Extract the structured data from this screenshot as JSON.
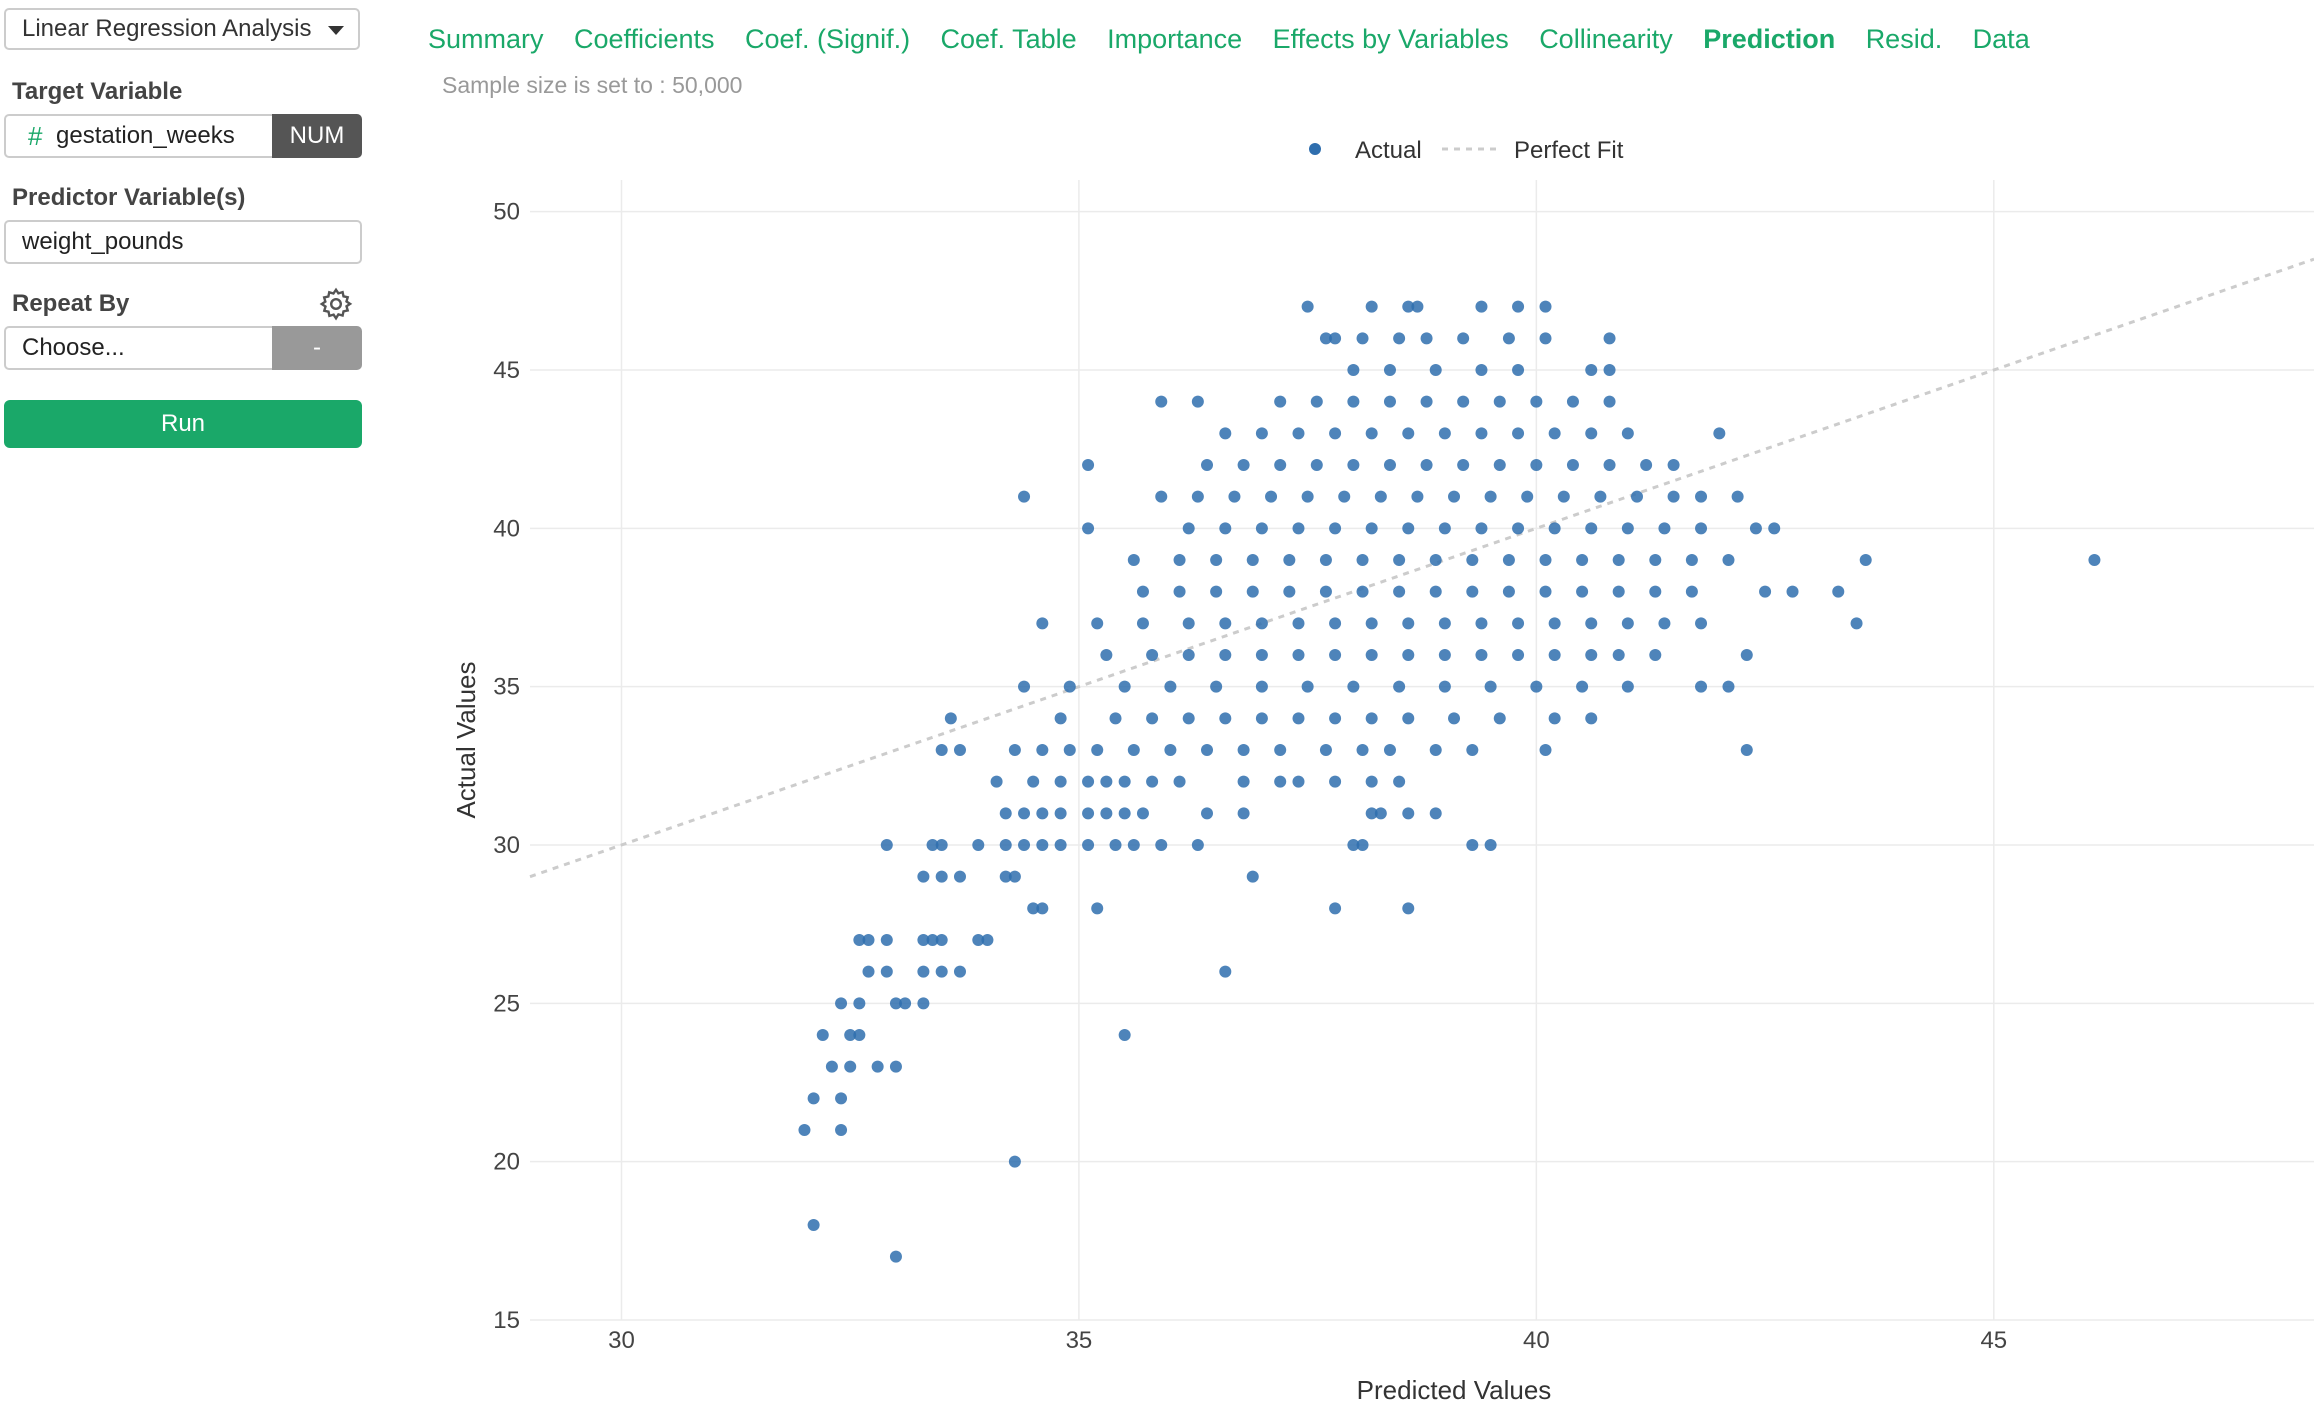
{
  "sidebar": {
    "analysis_type": "Linear Regression Analysis",
    "target_label": "Target Variable",
    "target_icon": "#",
    "target_value": "gestation_weeks",
    "target_type": "NUM",
    "predictor_label": "Predictor Variable(s)",
    "predictor_value": "weight_pounds",
    "repeat_label": "Repeat By",
    "repeat_value": "Choose...",
    "repeat_button": "-",
    "run_label": "Run",
    "gear_icon": "gear-icon",
    "accent_color": "#1aa869"
  },
  "tabs": [
    {
      "label": "Summary"
    },
    {
      "label": "Coefficients"
    },
    {
      "label": "Coef. (Signif.)"
    },
    {
      "label": "Coef. Table"
    },
    {
      "label": "Importance"
    },
    {
      "label": "Effects by Variables"
    },
    {
      "label": "Collinearity"
    },
    {
      "label": "Prediction",
      "active": true
    },
    {
      "label": "Resid."
    },
    {
      "label": "Data"
    }
  ],
  "sample_note": "Sample size is set to : 50,000",
  "chart_data": {
    "type": "scatter",
    "title": "",
    "xlabel": "Predicted Values",
    "ylabel": "Actual Values",
    "xlim": [
      29,
      48.5
    ],
    "ylim": [
      15,
      51
    ],
    "x_ticks": [
      30,
      35,
      40,
      45
    ],
    "y_ticks": [
      15,
      20,
      25,
      30,
      35,
      40,
      45,
      50
    ],
    "grid": true,
    "legend_position": "top-center",
    "point_color": "#2f6eae",
    "line_color": "#cccccc",
    "series": [
      {
        "name": "Actual",
        "points": [
          [
            32.1,
            18
          ],
          [
            33.0,
            17
          ],
          [
            34.3,
            20
          ],
          [
            32.0,
            21
          ],
          [
            32.4,
            21
          ],
          [
            32.1,
            22
          ],
          [
            32.4,
            22
          ],
          [
            32.3,
            23
          ],
          [
            32.5,
            23
          ],
          [
            32.8,
            23
          ],
          [
            33.0,
            23
          ],
          [
            32.2,
            24
          ],
          [
            32.5,
            24
          ],
          [
            32.6,
            24
          ],
          [
            35.5,
            24
          ],
          [
            32.4,
            25
          ],
          [
            32.6,
            25
          ],
          [
            33.0,
            25
          ],
          [
            33.1,
            25
          ],
          [
            33.3,
            25
          ],
          [
            36.6,
            26
          ],
          [
            32.7,
            26
          ],
          [
            32.9,
            26
          ],
          [
            33.3,
            26
          ],
          [
            33.5,
            26
          ],
          [
            33.7,
            26
          ],
          [
            32.6,
            27
          ],
          [
            32.7,
            27
          ],
          [
            32.9,
            27
          ],
          [
            33.3,
            27
          ],
          [
            33.4,
            27
          ],
          [
            33.5,
            27
          ],
          [
            33.9,
            27
          ],
          [
            34.0,
            27
          ],
          [
            34.5,
            28
          ],
          [
            34.6,
            28
          ],
          [
            35.2,
            28
          ],
          [
            37.8,
            28
          ],
          [
            38.6,
            28
          ],
          [
            33.3,
            29
          ],
          [
            33.5,
            29
          ],
          [
            33.7,
            29
          ],
          [
            34.2,
            29
          ],
          [
            34.3,
            29
          ],
          [
            36.9,
            29
          ],
          [
            32.9,
            30
          ],
          [
            33.4,
            30
          ],
          [
            33.5,
            30
          ],
          [
            33.9,
            30
          ],
          [
            34.2,
            30
          ],
          [
            34.4,
            30
          ],
          [
            34.6,
            30
          ],
          [
            34.8,
            30
          ],
          [
            35.1,
            30
          ],
          [
            35.4,
            30
          ],
          [
            35.6,
            30
          ],
          [
            35.9,
            30
          ],
          [
            36.3,
            30
          ],
          [
            38.0,
            30
          ],
          [
            38.1,
            30
          ],
          [
            39.3,
            30
          ],
          [
            39.5,
            30
          ],
          [
            34.2,
            31
          ],
          [
            34.4,
            31
          ],
          [
            34.6,
            31
          ],
          [
            34.8,
            31
          ],
          [
            35.1,
            31
          ],
          [
            35.3,
            31
          ],
          [
            35.5,
            31
          ],
          [
            35.7,
            31
          ],
          [
            36.4,
            31
          ],
          [
            36.8,
            31
          ],
          [
            38.2,
            31
          ],
          [
            38.3,
            31
          ],
          [
            38.6,
            31
          ],
          [
            38.9,
            31
          ],
          [
            34.1,
            32
          ],
          [
            34.5,
            32
          ],
          [
            34.8,
            32
          ],
          [
            35.1,
            32
          ],
          [
            35.3,
            32
          ],
          [
            35.5,
            32
          ],
          [
            35.8,
            32
          ],
          [
            36.1,
            32
          ],
          [
            36.8,
            32
          ],
          [
            37.2,
            32
          ],
          [
            37.4,
            32
          ],
          [
            37.8,
            32
          ],
          [
            38.2,
            32
          ],
          [
            38.5,
            32
          ],
          [
            33.5,
            33
          ],
          [
            33.7,
            33
          ],
          [
            34.3,
            33
          ],
          [
            34.6,
            33
          ],
          [
            34.9,
            33
          ],
          [
            35.2,
            33
          ],
          [
            35.6,
            33
          ],
          [
            36.0,
            33
          ],
          [
            36.4,
            33
          ],
          [
            36.8,
            33
          ],
          [
            37.2,
            33
          ],
          [
            37.7,
            33
          ],
          [
            38.1,
            33
          ],
          [
            38.4,
            33
          ],
          [
            38.9,
            33
          ],
          [
            39.3,
            33
          ],
          [
            40.1,
            33
          ],
          [
            42.3,
            33
          ],
          [
            33.6,
            34
          ],
          [
            34.8,
            34
          ],
          [
            35.4,
            34
          ],
          [
            35.8,
            34
          ],
          [
            36.2,
            34
          ],
          [
            36.6,
            34
          ],
          [
            37.0,
            34
          ],
          [
            37.4,
            34
          ],
          [
            37.8,
            34
          ],
          [
            38.2,
            34
          ],
          [
            38.6,
            34
          ],
          [
            39.1,
            34
          ],
          [
            39.6,
            34
          ],
          [
            40.2,
            34
          ],
          [
            40.6,
            34
          ],
          [
            34.4,
            35
          ],
          [
            34.9,
            35
          ],
          [
            35.5,
            35
          ],
          [
            36.0,
            35
          ],
          [
            36.5,
            35
          ],
          [
            37.0,
            35
          ],
          [
            37.5,
            35
          ],
          [
            38.0,
            35
          ],
          [
            38.5,
            35
          ],
          [
            39.0,
            35
          ],
          [
            39.5,
            35
          ],
          [
            40.0,
            35
          ],
          [
            40.5,
            35
          ],
          [
            41.0,
            35
          ],
          [
            41.8,
            35
          ],
          [
            42.1,
            35
          ],
          [
            35.3,
            36
          ],
          [
            35.8,
            36
          ],
          [
            36.2,
            36
          ],
          [
            36.6,
            36
          ],
          [
            37.0,
            36
          ],
          [
            37.4,
            36
          ],
          [
            37.8,
            36
          ],
          [
            38.2,
            36
          ],
          [
            38.6,
            36
          ],
          [
            39.0,
            36
          ],
          [
            39.4,
            36
          ],
          [
            39.8,
            36
          ],
          [
            40.2,
            36
          ],
          [
            40.6,
            36
          ],
          [
            40.9,
            36
          ],
          [
            41.3,
            36
          ],
          [
            42.3,
            36
          ],
          [
            34.6,
            37
          ],
          [
            35.2,
            37
          ],
          [
            35.7,
            37
          ],
          [
            36.2,
            37
          ],
          [
            36.6,
            37
          ],
          [
            37.0,
            37
          ],
          [
            37.4,
            37
          ],
          [
            37.8,
            37
          ],
          [
            38.2,
            37
          ],
          [
            38.6,
            37
          ],
          [
            39.0,
            37
          ],
          [
            39.4,
            37
          ],
          [
            39.8,
            37
          ],
          [
            40.2,
            37
          ],
          [
            40.6,
            37
          ],
          [
            41.0,
            37
          ],
          [
            41.4,
            37
          ],
          [
            41.8,
            37
          ],
          [
            43.5,
            37
          ],
          [
            35.7,
            38
          ],
          [
            36.1,
            38
          ],
          [
            36.5,
            38
          ],
          [
            36.9,
            38
          ],
          [
            37.3,
            38
          ],
          [
            37.7,
            38
          ],
          [
            38.1,
            38
          ],
          [
            38.5,
            38
          ],
          [
            38.9,
            38
          ],
          [
            39.3,
            38
          ],
          [
            39.7,
            38
          ],
          [
            40.1,
            38
          ],
          [
            40.5,
            38
          ],
          [
            40.9,
            38
          ],
          [
            41.3,
            38
          ],
          [
            41.7,
            38
          ],
          [
            42.5,
            38
          ],
          [
            42.8,
            38
          ],
          [
            43.3,
            38
          ],
          [
            35.6,
            39
          ],
          [
            36.1,
            39
          ],
          [
            36.5,
            39
          ],
          [
            36.9,
            39
          ],
          [
            37.3,
            39
          ],
          [
            37.7,
            39
          ],
          [
            38.1,
            39
          ],
          [
            38.5,
            39
          ],
          [
            38.9,
            39
          ],
          [
            39.3,
            39
          ],
          [
            39.7,
            39
          ],
          [
            40.1,
            39
          ],
          [
            40.5,
            39
          ],
          [
            40.9,
            39
          ],
          [
            41.3,
            39
          ],
          [
            41.7,
            39
          ],
          [
            42.1,
            39
          ],
          [
            43.6,
            39
          ],
          [
            46.1,
            39
          ],
          [
            35.1,
            40
          ],
          [
            36.2,
            40
          ],
          [
            36.6,
            40
          ],
          [
            37.0,
            40
          ],
          [
            37.4,
            40
          ],
          [
            37.8,
            40
          ],
          [
            38.2,
            40
          ],
          [
            38.6,
            40
          ],
          [
            39.0,
            40
          ],
          [
            39.4,
            40
          ],
          [
            39.8,
            40
          ],
          [
            40.2,
            40
          ],
          [
            40.6,
            40
          ],
          [
            41.0,
            40
          ],
          [
            41.4,
            40
          ],
          [
            41.8,
            40
          ],
          [
            42.4,
            40
          ],
          [
            42.6,
            40
          ],
          [
            34.4,
            41
          ],
          [
            35.9,
            41
          ],
          [
            36.3,
            41
          ],
          [
            36.7,
            41
          ],
          [
            37.1,
            41
          ],
          [
            37.5,
            41
          ],
          [
            37.9,
            41
          ],
          [
            38.3,
            41
          ],
          [
            38.7,
            41
          ],
          [
            39.1,
            41
          ],
          [
            39.5,
            41
          ],
          [
            39.9,
            41
          ],
          [
            40.3,
            41
          ],
          [
            40.7,
            41
          ],
          [
            41.1,
            41
          ],
          [
            41.5,
            41
          ],
          [
            41.8,
            41
          ],
          [
            42.2,
            41
          ],
          [
            35.1,
            42
          ],
          [
            36.4,
            42
          ],
          [
            36.8,
            42
          ],
          [
            37.2,
            42
          ],
          [
            37.6,
            42
          ],
          [
            38.0,
            42
          ],
          [
            38.4,
            42
          ],
          [
            38.8,
            42
          ],
          [
            39.2,
            42
          ],
          [
            39.6,
            42
          ],
          [
            40.0,
            42
          ],
          [
            40.4,
            42
          ],
          [
            40.8,
            42
          ],
          [
            41.2,
            42
          ],
          [
            41.5,
            42
          ],
          [
            36.6,
            43
          ],
          [
            37.0,
            43
          ],
          [
            37.4,
            43
          ],
          [
            37.8,
            43
          ],
          [
            38.2,
            43
          ],
          [
            38.6,
            43
          ],
          [
            39.0,
            43
          ],
          [
            39.4,
            43
          ],
          [
            39.8,
            43
          ],
          [
            40.2,
            43
          ],
          [
            40.6,
            43
          ],
          [
            41.0,
            43
          ],
          [
            42.0,
            43
          ],
          [
            35.9,
            44
          ],
          [
            36.3,
            44
          ],
          [
            37.2,
            44
          ],
          [
            37.6,
            44
          ],
          [
            38.0,
            44
          ],
          [
            38.4,
            44
          ],
          [
            38.8,
            44
          ],
          [
            39.2,
            44
          ],
          [
            39.6,
            44
          ],
          [
            40.0,
            44
          ],
          [
            40.4,
            44
          ],
          [
            40.8,
            44
          ],
          [
            38.0,
            45
          ],
          [
            38.4,
            45
          ],
          [
            38.9,
            45
          ],
          [
            39.4,
            45
          ],
          [
            39.8,
            45
          ],
          [
            40.6,
            45
          ],
          [
            40.8,
            45
          ],
          [
            37.7,
            46
          ],
          [
            37.8,
            46
          ],
          [
            38.1,
            46
          ],
          [
            38.5,
            46
          ],
          [
            38.8,
            46
          ],
          [
            39.2,
            46
          ],
          [
            39.7,
            46
          ],
          [
            40.1,
            46
          ],
          [
            40.8,
            46
          ],
          [
            37.5,
            47
          ],
          [
            38.2,
            47
          ],
          [
            38.6,
            47
          ],
          [
            38.7,
            47
          ],
          [
            39.4,
            47
          ],
          [
            39.8,
            47
          ],
          [
            40.1,
            47
          ]
        ]
      }
    ],
    "fit_line": {
      "name": "Perfect Fit",
      "x": [
        29,
        48.5
      ],
      "y": [
        29,
        48.5
      ]
    }
  }
}
